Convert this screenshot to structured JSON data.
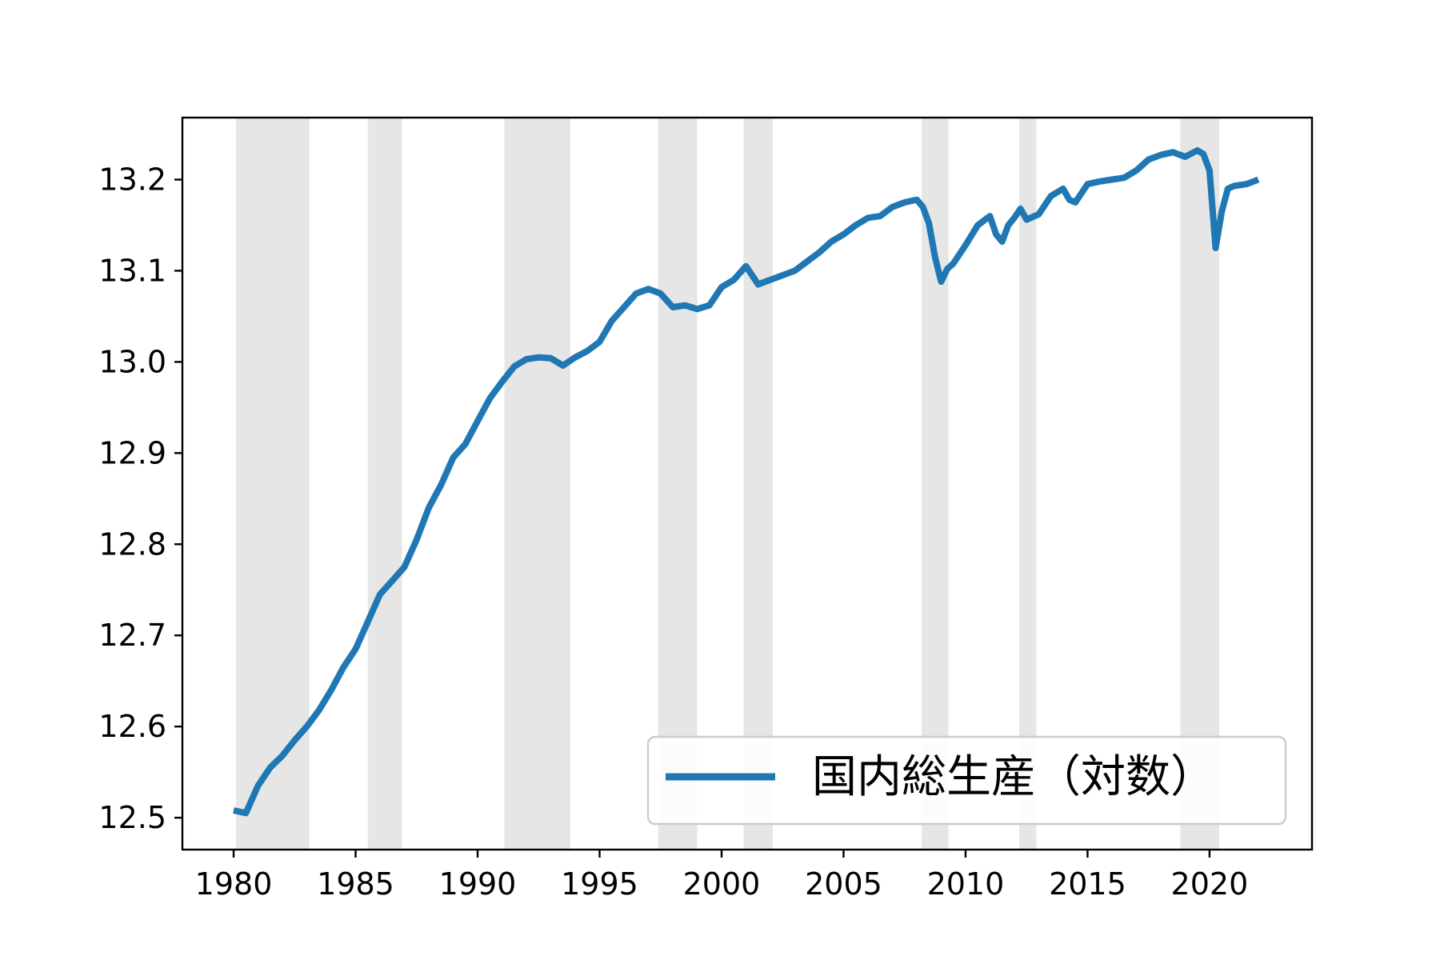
{
  "chart_data": {
    "type": "line",
    "title": "",
    "xlabel": "",
    "ylabel": "",
    "xlim": [
      1977.9,
      2024.2
    ],
    "ylim": [
      12.465,
      13.268
    ],
    "xticks": [
      1980,
      1985,
      1990,
      1995,
      2000,
      2005,
      2010,
      2015,
      2020
    ],
    "yticks": [
      12.5,
      12.6,
      12.7,
      12.8,
      12.9,
      13.0,
      13.1,
      13.2
    ],
    "ytick_labels": [
      "12.5",
      "12.6",
      "12.7",
      "12.8",
      "12.9",
      "13.0",
      "13.1",
      "13.2"
    ],
    "grid": false,
    "legend_position": "lower-right",
    "shaded_periods": [
      [
        1980.1,
        1983.1
      ],
      [
        1985.5,
        1986.9
      ],
      [
        1991.1,
        1993.8
      ],
      [
        1997.4,
        1999.0
      ],
      [
        2000.9,
        2002.1
      ],
      [
        2008.2,
        2009.3
      ],
      [
        2012.2,
        2012.9
      ],
      [
        2018.8,
        2020.4
      ]
    ],
    "series": [
      {
        "name": "国内総生産（対数）",
        "color": "#1f77b4",
        "x": [
          1980.0,
          1980.5,
          1981.0,
          1981.5,
          1982.0,
          1982.5,
          1983.0,
          1983.5,
          1984.0,
          1984.5,
          1985.0,
          1985.5,
          1986.0,
          1986.5,
          1987.0,
          1987.5,
          1988.0,
          1988.5,
          1989.0,
          1989.5,
          1990.0,
          1990.5,
          1991.0,
          1991.5,
          1992.0,
          1992.5,
          1993.0,
          1993.5,
          1994.0,
          1994.5,
          1995.0,
          1995.5,
          1996.0,
          1996.5,
          1997.0,
          1997.5,
          1998.0,
          1998.5,
          1999.0,
          1999.5,
          2000.0,
          2000.5,
          2001.0,
          2001.5,
          2002.0,
          2002.5,
          2003.0,
          2003.5,
          2004.0,
          2004.5,
          2005.0,
          2005.5,
          2006.0,
          2006.5,
          2007.0,
          2007.5,
          2008.0,
          2008.25,
          2008.5,
          2008.75,
          2009.0,
          2009.25,
          2009.5,
          2010.0,
          2010.5,
          2011.0,
          2011.25,
          2011.5,
          2011.75,
          2012.0,
          2012.25,
          2012.5,
          2013.0,
          2013.5,
          2014.0,
          2014.25,
          2014.5,
          2015.0,
          2015.5,
          2016.0,
          2016.5,
          2017.0,
          2017.5,
          2018.0,
          2018.5,
          2019.0,
          2019.5,
          2019.75,
          2020.0,
          2020.25,
          2020.5,
          2020.75,
          2021.0,
          2021.5,
          2022.0
        ],
        "values": [
          12.508,
          12.505,
          12.535,
          12.555,
          12.568,
          12.585,
          12.6,
          12.618,
          12.64,
          12.665,
          12.685,
          12.715,
          12.745,
          12.76,
          12.775,
          12.805,
          12.84,
          12.865,
          12.895,
          12.91,
          12.935,
          12.96,
          12.978,
          12.995,
          13.003,
          13.005,
          13.004,
          12.996,
          13.005,
          13.012,
          13.022,
          13.045,
          13.06,
          13.075,
          13.08,
          13.075,
          13.06,
          13.062,
          13.058,
          13.062,
          13.082,
          13.09,
          13.105,
          13.085,
          13.09,
          13.095,
          13.1,
          13.11,
          13.12,
          13.132,
          13.14,
          13.15,
          13.158,
          13.16,
          13.17,
          13.175,
          13.178,
          13.17,
          13.152,
          13.115,
          13.088,
          13.102,
          13.108,
          13.128,
          13.15,
          13.16,
          13.14,
          13.132,
          13.15,
          13.158,
          13.168,
          13.156,
          13.162,
          13.182,
          13.19,
          13.178,
          13.175,
          13.195,
          13.198,
          13.2,
          13.202,
          13.21,
          13.222,
          13.227,
          13.23,
          13.225,
          13.232,
          13.228,
          13.21,
          13.125,
          13.165,
          13.19,
          13.193,
          13.195,
          13.2
        ]
      }
    ]
  }
}
